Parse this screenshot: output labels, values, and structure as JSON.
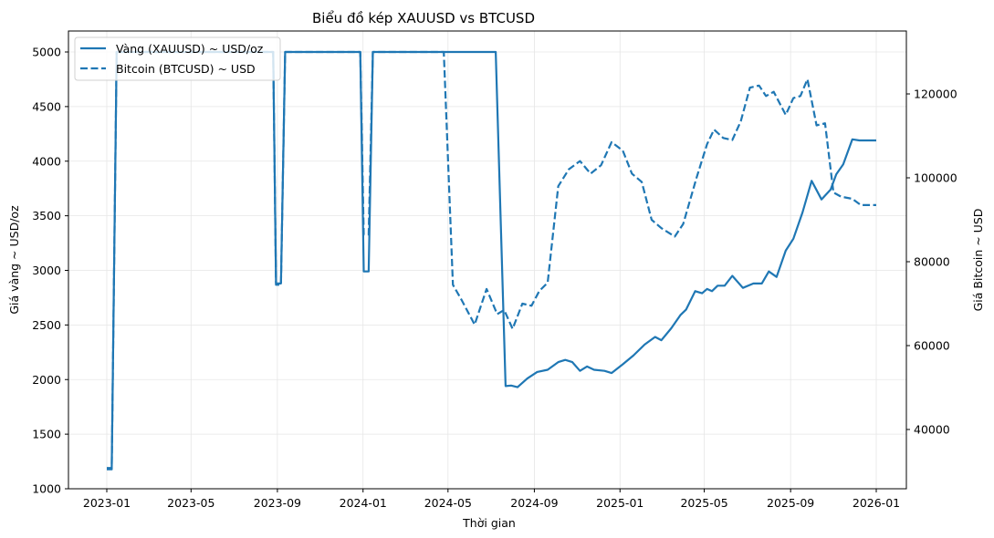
{
  "chart_data": {
    "type": "line",
    "title": "Biểu đồ kép XAUUSD vs BTCUSD",
    "xlabel": "Thời gian",
    "ylabel": "Giá vàng ~ USD/oz",
    "ylabel_right": "Giá Bitcoin ~ USD",
    "x_ticks": [
      "2023-01",
      "2023-05",
      "2023-09",
      "2024-01",
      "2024-05",
      "2024-09",
      "2025-01",
      "2025-05",
      "2025-09",
      "2026-01"
    ],
    "y_ticks_left": [
      1000,
      1500,
      2000,
      2500,
      3000,
      3500,
      4000,
      4500,
      5000
    ],
    "y_ticks_right": [
      40000,
      60000,
      80000,
      100000,
      120000
    ],
    "ylim_left": [
      960,
      5200
    ],
    "ylim_right": [
      25600,
      135000
    ],
    "grid": true,
    "legend_position": "upper left",
    "color": "#1f77b4",
    "series": [
      {
        "name": "Vàng (XAUUSD) ~ USD/oz",
        "axis": "left",
        "style": "solid",
        "points": [
          [
            "2023-01-01",
            1190
          ],
          [
            "2023-01-08",
            1190
          ],
          [
            "2023-01-15",
            5000
          ],
          [
            "2023-08-26",
            5000
          ],
          [
            "2023-08-30",
            2880
          ],
          [
            "2023-09-06",
            2880
          ],
          [
            "2023-09-12",
            5000
          ],
          [
            "2023-12-28",
            5000
          ],
          [
            "2024-01-02",
            2990
          ],
          [
            "2024-01-09",
            2990
          ],
          [
            "2024-01-15",
            5000
          ],
          [
            "2024-07-08",
            5000
          ],
          [
            "2024-07-22",
            1940
          ],
          [
            "2024-07-30",
            1945
          ],
          [
            "2024-08-08",
            1930
          ],
          [
            "2024-08-22",
            2010
          ],
          [
            "2024-09-05",
            2070
          ],
          [
            "2024-09-20",
            2090
          ],
          [
            "2024-10-05",
            2160
          ],
          [
            "2024-10-15",
            2180
          ],
          [
            "2024-10-25",
            2160
          ],
          [
            "2024-11-05",
            2080
          ],
          [
            "2024-11-15",
            2120
          ],
          [
            "2024-11-25",
            2090
          ],
          [
            "2024-12-10",
            2080
          ],
          [
            "2024-12-20",
            2060
          ],
          [
            "2025-01-05",
            2140
          ],
          [
            "2025-01-20",
            2220
          ],
          [
            "2025-02-05",
            2320
          ],
          [
            "2025-02-20",
            2390
          ],
          [
            "2025-03-01",
            2360
          ],
          [
            "2025-03-15",
            2470
          ],
          [
            "2025-03-28",
            2590
          ],
          [
            "2025-04-05",
            2640
          ],
          [
            "2025-04-18",
            2810
          ],
          [
            "2025-04-28",
            2790
          ],
          [
            "2025-05-05",
            2830
          ],
          [
            "2025-05-12",
            2810
          ],
          [
            "2025-05-20",
            2860
          ],
          [
            "2025-05-30",
            2860
          ],
          [
            "2025-06-10",
            2950
          ],
          [
            "2025-06-25",
            2840
          ],
          [
            "2025-07-10",
            2880
          ],
          [
            "2025-07-22",
            2880
          ],
          [
            "2025-08-01",
            2990
          ],
          [
            "2025-08-12",
            2940
          ],
          [
            "2025-08-25",
            3180
          ],
          [
            "2025-09-05",
            3290
          ],
          [
            "2025-09-18",
            3530
          ],
          [
            "2025-10-01",
            3820
          ],
          [
            "2025-10-15",
            3650
          ],
          [
            "2025-10-28",
            3740
          ],
          [
            "2025-11-05",
            3880
          ],
          [
            "2025-11-15",
            3970
          ],
          [
            "2025-11-28",
            4200
          ],
          [
            "2025-12-08",
            4190
          ],
          [
            "2026-01-01",
            4190
          ]
        ]
      },
      {
        "name": "Bitcoin (BTCUSD) ~ USD",
        "axis": "right",
        "style": "dashed",
        "points": [
          [
            "2023-01-01",
            30500
          ],
          [
            "2023-01-08",
            30500
          ],
          [
            "2023-01-15",
            130000
          ],
          [
            "2023-08-26",
            130000
          ],
          [
            "2023-08-30",
            74500
          ],
          [
            "2023-09-06",
            74500
          ],
          [
            "2023-09-12",
            130000
          ],
          [
            "2023-12-28",
            130000
          ],
          [
            "2024-01-02",
            86500
          ],
          [
            "2024-01-09",
            86500
          ],
          [
            "2024-01-15",
            130000
          ],
          [
            "2024-04-25",
            130000
          ],
          [
            "2024-05-08",
            74500
          ],
          [
            "2024-05-20",
            71000
          ],
          [
            "2024-06-08",
            65000
          ],
          [
            "2024-06-25",
            73500
          ],
          [
            "2024-07-10",
            67500
          ],
          [
            "2024-07-20",
            68500
          ],
          [
            "2024-08-01",
            64000
          ],
          [
            "2024-08-15",
            70000
          ],
          [
            "2024-08-28",
            69500
          ],
          [
            "2024-09-08",
            73000
          ],
          [
            "2024-09-20",
            75000
          ],
          [
            "2024-10-05",
            98000
          ],
          [
            "2024-10-20",
            102000
          ],
          [
            "2024-11-05",
            104000
          ],
          [
            "2024-11-20",
            101000
          ],
          [
            "2024-12-05",
            103000
          ],
          [
            "2024-12-20",
            108500
          ],
          [
            "2025-01-05",
            106500
          ],
          [
            "2025-01-18",
            101000
          ],
          [
            "2025-02-01",
            99000
          ],
          [
            "2025-02-15",
            90000
          ],
          [
            "2025-03-01",
            88000
          ],
          [
            "2025-03-20",
            86000
          ],
          [
            "2025-04-01",
            89000
          ],
          [
            "2025-04-20",
            100000
          ],
          [
            "2025-05-05",
            108000
          ],
          [
            "2025-05-15",
            111500
          ],
          [
            "2025-05-28",
            109500
          ],
          [
            "2025-06-10",
            109000
          ],
          [
            "2025-06-22",
            113500
          ],
          [
            "2025-07-05",
            121500
          ],
          [
            "2025-07-18",
            122000
          ],
          [
            "2025-07-28",
            119500
          ],
          [
            "2025-08-08",
            120500
          ],
          [
            "2025-08-25",
            115000
          ],
          [
            "2025-09-05",
            119000
          ],
          [
            "2025-09-15",
            119500
          ],
          [
            "2025-09-25",
            123500
          ],
          [
            "2025-10-08",
            112500
          ],
          [
            "2025-10-20",
            113000
          ],
          [
            "2025-11-01",
            96500
          ],
          [
            "2025-11-12",
            95500
          ],
          [
            "2025-11-28",
            95000
          ],
          [
            "2025-12-10",
            93500
          ],
          [
            "2026-01-01",
            93500
          ]
        ]
      }
    ]
  }
}
